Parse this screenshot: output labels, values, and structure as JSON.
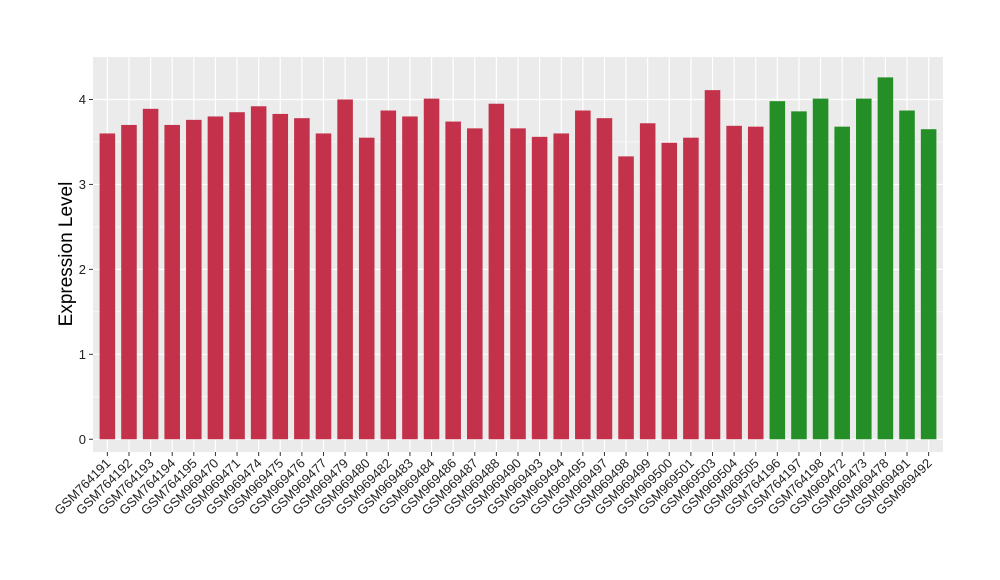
{
  "chart_data": {
    "type": "bar",
    "title": "",
    "xlabel": "",
    "ylabel": "Expression Level",
    "ylim": [
      -0.15,
      4.5
    ],
    "yticks": [
      0,
      1,
      2,
      3,
      4
    ],
    "grid": true,
    "legend": "none",
    "categories": [
      "GSM764191",
      "GSM764192",
      "GSM764193",
      "GSM764194",
      "GSM764195",
      "GSM969470",
      "GSM969471",
      "GSM969474",
      "GSM969475",
      "GSM969476",
      "GSM969477",
      "GSM969479",
      "GSM969480",
      "GSM969482",
      "GSM969483",
      "GSM969484",
      "GSM969486",
      "GSM969487",
      "GSM969488",
      "GSM969490",
      "GSM969493",
      "GSM969494",
      "GSM969495",
      "GSM969497",
      "GSM969498",
      "GSM969499",
      "GSM969500",
      "GSM969501",
      "GSM969503",
      "GSM969504",
      "GSM969505",
      "GSM764196",
      "GSM764197",
      "GSM764198",
      "GSM969472",
      "GSM969473",
      "GSM969478",
      "GSM969491",
      "GSM969492"
    ],
    "values": [
      3.6,
      3.7,
      3.89,
      3.7,
      3.76,
      3.8,
      3.85,
      3.92,
      3.83,
      3.78,
      3.6,
      4.0,
      3.55,
      3.87,
      3.8,
      4.01,
      3.74,
      3.66,
      3.95,
      3.66,
      3.56,
      3.6,
      3.87,
      3.78,
      3.33,
      3.72,
      3.49,
      3.55,
      4.11,
      3.69,
      3.68,
      3.98,
      3.86,
      4.01,
      3.68,
      4.01,
      4.26,
      3.87,
      3.65
    ],
    "groups": [
      "red",
      "red",
      "red",
      "red",
      "red",
      "red",
      "red",
      "red",
      "red",
      "red",
      "red",
      "red",
      "red",
      "red",
      "red",
      "red",
      "red",
      "red",
      "red",
      "red",
      "red",
      "red",
      "red",
      "red",
      "red",
      "red",
      "red",
      "red",
      "red",
      "red",
      "red",
      "green",
      "green",
      "green",
      "green",
      "green",
      "green",
      "green",
      "green"
    ],
    "colors": {
      "red": "#c3324a",
      "green": "#248f27",
      "panel_bg": "#ebebeb",
      "grid": "#ffffff"
    }
  }
}
